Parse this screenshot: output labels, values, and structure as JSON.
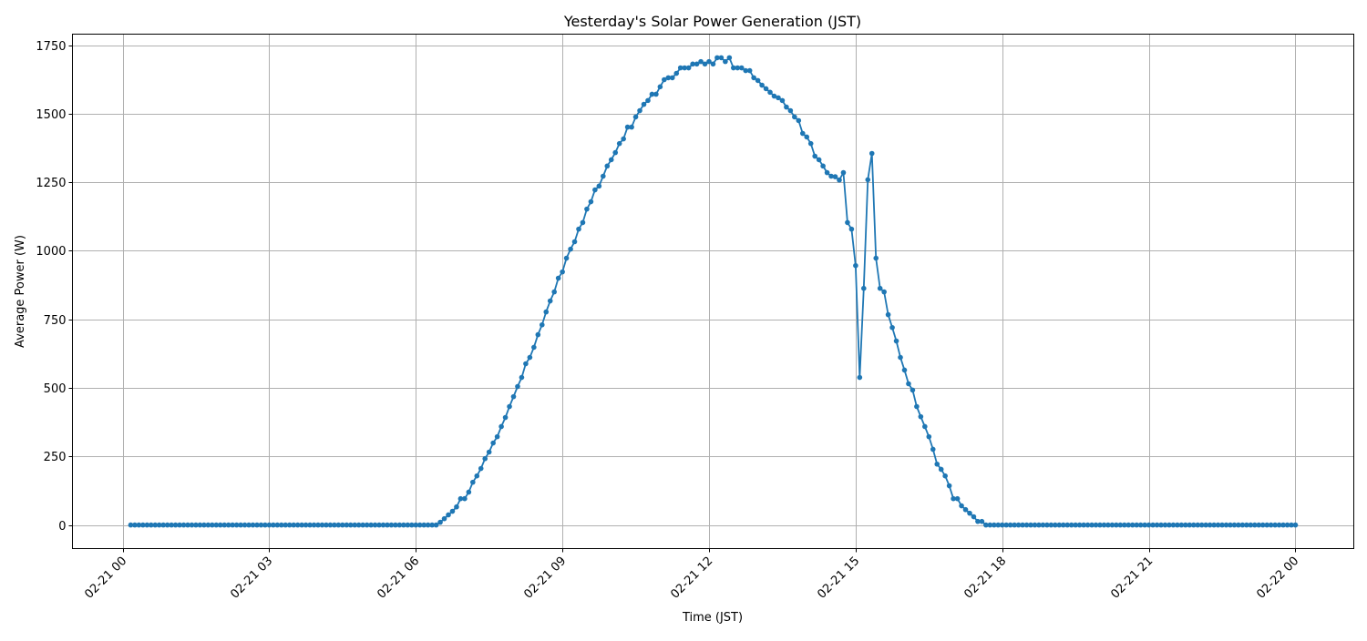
{
  "chart_data": {
    "type": "line",
    "title": "Yesterday's Solar Power Generation (JST)",
    "xlabel": "Time (JST)",
    "ylabel": "Average Power (W)",
    "xlim": [
      "02-20 22:58",
      "02-22 01:11"
    ],
    "ylim": [
      -86,
      1790
    ],
    "grid": true,
    "marker": "circle",
    "series_color": "#1f77b4",
    "grid_color": "#b0b0b0",
    "x_ticks": [
      "02-21 00",
      "02-21 03",
      "02-21 06",
      "02-21 09",
      "02-21 12",
      "02-21 15",
      "02-21 18",
      "02-21 21",
      "02-22 00"
    ],
    "x_tick_hours": [
      0,
      3,
      6,
      9,
      12,
      15,
      18,
      21,
      24
    ],
    "y_ticks": [
      "0",
      "250",
      "500",
      "750",
      "1000",
      "1250",
      "1500",
      "1750"
    ],
    "y_tick_values": [
      0,
      250,
      500,
      750,
      1000,
      1250,
      1500,
      1750
    ],
    "series": [
      {
        "x": [
          "02-21 00:10",
          "02-21 00:15",
          "02-21 00:20",
          "02-21 00:25",
          "02-21 00:30",
          "02-21 00:35",
          "02-21 00:40",
          "02-21 00:45",
          "02-21 00:50",
          "02-21 00:55",
          "02-21 01:00",
          "02-21 01:05",
          "02-21 01:10",
          "02-21 01:15",
          "02-21 01:20",
          "02-21 01:25",
          "02-21 01:30",
          "02-21 01:35",
          "02-21 01:40",
          "02-21 01:45",
          "02-21 01:50",
          "02-21 01:55",
          "02-21 02:00",
          "02-21 02:05",
          "02-21 02:10",
          "02-21 02:15",
          "02-21 02:20",
          "02-21 02:25",
          "02-21 02:30",
          "02-21 02:35",
          "02-21 02:40",
          "02-21 02:45",
          "02-21 02:50",
          "02-21 02:55",
          "02-21 03:00",
          "02-21 03:05",
          "02-21 03:10",
          "02-21 03:15",
          "02-21 03:20",
          "02-21 03:25",
          "02-21 03:30",
          "02-21 03:35",
          "02-21 03:40",
          "02-21 03:45",
          "02-21 03:50",
          "02-21 03:55",
          "02-21 04:00",
          "02-21 04:05",
          "02-21 04:10",
          "02-21 04:15",
          "02-21 04:20",
          "02-21 04:25",
          "02-21 04:30",
          "02-21 04:35",
          "02-21 04:40",
          "02-21 04:45",
          "02-21 04:50",
          "02-21 04:55",
          "02-21 05:00",
          "02-21 05:05",
          "02-21 05:10",
          "02-21 05:15",
          "02-21 05:20",
          "02-21 05:25",
          "02-21 05:30",
          "02-21 05:35",
          "02-21 05:40",
          "02-21 05:45",
          "02-21 05:50",
          "02-21 05:55",
          "02-21 06:00",
          "02-21 06:05",
          "02-21 06:10",
          "02-21 06:15",
          "02-21 06:20",
          "02-21 06:25",
          "02-21 06:30",
          "02-21 06:35",
          "02-21 06:40",
          "02-21 06:45",
          "02-21 06:50",
          "02-21 06:55",
          "02-21 07:00",
          "02-21 07:05",
          "02-21 07:10",
          "02-21 07:15",
          "02-21 07:20",
          "02-21 07:25",
          "02-21 07:30",
          "02-21 07:35",
          "02-21 07:40",
          "02-21 07:45",
          "02-21 07:50",
          "02-21 07:55",
          "02-21 08:00",
          "02-21 08:05",
          "02-21 08:10",
          "02-21 08:15",
          "02-21 08:20",
          "02-21 08:25",
          "02-21 08:30",
          "02-21 08:35",
          "02-21 08:40",
          "02-21 08:45",
          "02-21 08:50",
          "02-21 08:55",
          "02-21 09:00",
          "02-21 09:05",
          "02-21 09:10",
          "02-21 09:15",
          "02-21 09:20",
          "02-21 09:25",
          "02-21 09:30",
          "02-21 09:35",
          "02-21 09:40",
          "02-21 09:45",
          "02-21 09:50",
          "02-21 09:55",
          "02-21 10:00",
          "02-21 10:05",
          "02-21 10:10",
          "02-21 10:15",
          "02-21 10:20",
          "02-21 10:25",
          "02-21 10:30",
          "02-21 10:35",
          "02-21 10:40",
          "02-21 10:45",
          "02-21 10:50",
          "02-21 10:55",
          "02-21 11:00",
          "02-21 11:05",
          "02-21 11:10",
          "02-21 11:15",
          "02-21 11:20",
          "02-21 11:25",
          "02-21 11:30",
          "02-21 11:35",
          "02-21 11:40",
          "02-21 11:45",
          "02-21 11:50",
          "02-21 11:55",
          "02-21 12:00",
          "02-21 12:05",
          "02-21 12:10",
          "02-21 12:15",
          "02-21 12:20",
          "02-21 12:25",
          "02-21 12:30",
          "02-21 12:35",
          "02-21 12:40",
          "02-21 12:45",
          "02-21 12:50",
          "02-21 12:55",
          "02-21 13:00",
          "02-21 13:05",
          "02-21 13:10",
          "02-21 13:15",
          "02-21 13:20",
          "02-21 13:25",
          "02-21 13:30",
          "02-21 13:35",
          "02-21 13:40",
          "02-21 13:45",
          "02-21 13:50",
          "02-21 13:55",
          "02-21 14:00",
          "02-21 14:05",
          "02-21 14:10",
          "02-21 14:15",
          "02-21 14:20",
          "02-21 14:25",
          "02-21 14:30",
          "02-21 14:35",
          "02-21 14:40",
          "02-21 14:45",
          "02-21 14:50",
          "02-21 14:55",
          "02-21 15:00",
          "02-21 15:05",
          "02-21 15:10",
          "02-21 15:15",
          "02-21 15:20",
          "02-21 15:25",
          "02-21 15:30",
          "02-21 15:35",
          "02-21 15:40",
          "02-21 15:45",
          "02-21 15:50",
          "02-21 15:55",
          "02-21 16:00",
          "02-21 16:05",
          "02-21 16:10",
          "02-21 16:15",
          "02-21 16:20",
          "02-21 16:25",
          "02-21 16:30",
          "02-21 16:35",
          "02-21 16:40",
          "02-21 16:45",
          "02-21 16:50",
          "02-21 16:55",
          "02-21 17:00",
          "02-21 17:05",
          "02-21 17:10",
          "02-21 17:15",
          "02-21 17:20",
          "02-21 17:25",
          "02-21 17:30",
          "02-21 17:35",
          "02-21 17:40",
          "02-21 17:45",
          "02-21 17:50",
          "02-21 17:55",
          "02-21 18:00",
          "02-21 18:05",
          "02-21 18:10",
          "02-21 18:15",
          "02-21 18:20",
          "02-21 18:25",
          "02-21 18:30",
          "02-21 18:35",
          "02-21 18:40",
          "02-21 18:45",
          "02-21 18:50",
          "02-21 18:55",
          "02-21 19:00",
          "02-21 19:05",
          "02-21 19:10",
          "02-21 19:15",
          "02-21 19:20",
          "02-21 19:25",
          "02-21 19:30",
          "02-21 19:35",
          "02-21 19:40",
          "02-21 19:45",
          "02-21 19:50",
          "02-21 19:55",
          "02-21 20:00",
          "02-21 20:05",
          "02-21 20:10",
          "02-21 20:15",
          "02-21 20:20",
          "02-21 20:25",
          "02-21 20:30",
          "02-21 20:35",
          "02-21 20:40",
          "02-21 20:45",
          "02-21 20:50",
          "02-21 20:55",
          "02-21 21:00",
          "02-21 21:05",
          "02-21 21:10",
          "02-21 21:15",
          "02-21 21:20",
          "02-21 21:25",
          "02-21 21:30",
          "02-21 21:35",
          "02-21 21:40",
          "02-21 21:45",
          "02-21 21:50",
          "02-21 21:55",
          "02-21 22:00",
          "02-21 22:05",
          "02-21 22:10",
          "02-21 22:15",
          "02-21 22:20",
          "02-21 22:25",
          "02-21 22:30",
          "02-21 22:35",
          "02-21 22:40",
          "02-21 22:45",
          "02-21 22:50",
          "02-21 22:55",
          "02-21 23:00",
          "02-21 23:05",
          "02-21 23:10",
          "02-21 23:15",
          "02-21 23:20",
          "02-21 23:25",
          "02-21 23:30",
          "02-21 23:35",
          "02-21 23:40",
          "02-21 23:45",
          "02-21 23:50",
          "02-21 23:55",
          "02-22 00:00"
        ],
        "values": [
          0,
          0,
          0,
          0,
          0,
          0,
          0,
          0,
          0,
          0,
          0,
          0,
          0,
          0,
          0,
          0,
          0,
          0,
          0,
          0,
          0,
          0,
          0,
          0,
          0,
          0,
          0,
          0,
          0,
          0,
          0,
          0,
          0,
          0,
          0,
          0,
          0,
          0,
          0,
          0,
          0,
          0,
          0,
          0,
          0,
          0,
          0,
          0,
          0,
          0,
          0,
          0,
          0,
          0,
          0,
          0,
          0,
          0,
          0,
          0,
          0,
          0,
          0,
          0,
          0,
          0,
          0,
          0,
          0,
          0,
          0,
          0,
          0,
          0,
          0,
          0,
          10,
          23,
          37,
          50,
          66,
          96,
          96,
          120,
          156,
          179,
          206,
          242,
          266,
          299,
          322,
          359,
          392,
          432,
          468,
          505,
          538,
          588,
          611,
          648,
          694,
          730,
          777,
          817,
          850,
          900,
          923,
          973,
          1006,
          1033,
          1079,
          1103,
          1152,
          1179,
          1222,
          1236,
          1272,
          1309,
          1332,
          1358,
          1391,
          1408,
          1451,
          1451,
          1488,
          1511,
          1534,
          1548,
          1571,
          1571,
          1598,
          1624,
          1631,
          1631,
          1647,
          1667,
          1667,
          1667,
          1681,
          1681,
          1690,
          1681,
          1690,
          1681,
          1704,
          1704,
          1690,
          1704,
          1667,
          1667,
          1667,
          1657,
          1657,
          1631,
          1621,
          1604,
          1591,
          1578,
          1564,
          1558,
          1548,
          1524,
          1511,
          1488,
          1475,
          1428,
          1415,
          1391,
          1345,
          1332,
          1309,
          1285,
          1272,
          1270,
          1258,
          1285,
          1103,
          1079,
          946,
          538,
          863,
          1259,
          1355,
          973,
          863,
          850,
          767,
          720,
          671,
          611,
          565,
          515,
          492,
          432,
          395,
          359,
          322,
          276,
          222,
          203,
          179,
          143,
          96,
          96,
          70,
          56,
          43,
          30,
          13,
          13,
          0,
          0,
          0,
          0,
          0,
          0,
          0,
          0,
          0,
          0,
          0,
          0,
          0,
          0,
          0,
          0,
          0,
          0,
          0,
          0,
          0,
          0,
          0,
          0,
          0,
          0,
          0,
          0,
          0,
          0,
          0,
          0,
          0,
          0,
          0,
          0,
          0,
          0,
          0,
          0,
          0,
          0,
          0,
          0,
          0,
          0,
          0,
          0,
          0,
          0,
          0,
          0,
          0,
          0,
          0,
          0,
          0,
          0,
          0,
          0,
          0,
          0,
          0,
          0,
          0,
          0,
          0,
          0,
          0,
          0,
          0,
          0,
          0,
          0,
          0,
          0,
          0
        ]
      }
    ]
  }
}
